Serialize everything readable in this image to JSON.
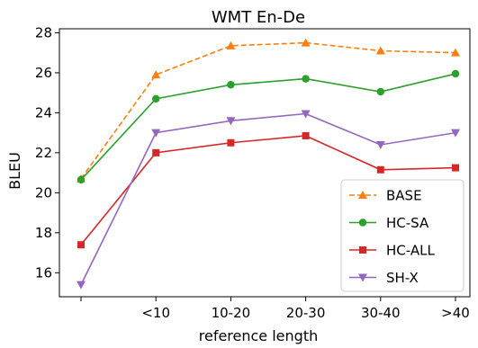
{
  "chart_data": {
    "type": "line",
    "title": "WMT En-De",
    "xlabel": "reference length",
    "ylabel": "BLEU",
    "categories": [
      "",
      "<10",
      "10-20",
      "20-30",
      "30-40",
      ">40"
    ],
    "ylim": [
      14.8,
      28.2
    ],
    "yticks": [
      16,
      18,
      20,
      22,
      24,
      26,
      28
    ],
    "grid": false,
    "legend_position": "lower-right",
    "series": [
      {
        "name": "BASE",
        "values": [
          20.7,
          25.9,
          27.35,
          27.5,
          27.1,
          27.0
        ],
        "color": "#ff7f0e",
        "marker": "triangle-up",
        "dash": true
      },
      {
        "name": "HC-SA",
        "values": [
          20.65,
          24.7,
          25.4,
          25.7,
          25.05,
          25.95
        ],
        "color": "#2ca02c",
        "marker": "circle",
        "dash": false
      },
      {
        "name": "HC-ALL",
        "values": [
          17.4,
          22.0,
          22.5,
          22.85,
          21.15,
          21.25
        ],
        "color": "#d62728",
        "marker": "square",
        "dash": false
      },
      {
        "name": "SH-X",
        "values": [
          15.4,
          23.0,
          23.6,
          23.95,
          22.4,
          23.0
        ],
        "color": "#9467bd",
        "marker": "triangle-down",
        "dash": false
      }
    ]
  }
}
